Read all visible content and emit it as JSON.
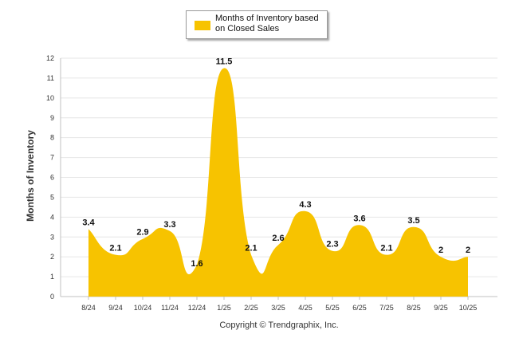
{
  "chart_data": {
    "type": "area",
    "title": "",
    "xlabel": "",
    "ylabel": "Months of Inventory",
    "ylim": [
      0,
      12
    ],
    "yticks": [
      "0",
      "1",
      "2",
      "3",
      "4",
      "5",
      "6",
      "7",
      "8",
      "9",
      "10",
      "11",
      "12"
    ],
    "categories": [
      "8/24",
      "9/24",
      "10/24",
      "11/24",
      "12/24",
      "1/25",
      "2/25",
      "3/25",
      "4/25",
      "5/25",
      "6/25",
      "7/25",
      "8/25",
      "9/25",
      "10/25"
    ],
    "series": [
      {
        "name": "Months of Inventory based on Closed Sales",
        "values": [
          3.4,
          2.1,
          2.9,
          3.3,
          1.6,
          11.5,
          2.1,
          2.6,
          4.3,
          2.3,
          3.6,
          2.1,
          3.5,
          2,
          2
        ],
        "labels": [
          "3.4",
          "2.1",
          "2.9",
          "3.3",
          "1.6",
          "11.5",
          "2.1",
          "2.6",
          "4.3",
          "2.3",
          "3.6",
          "2.1",
          "3.5",
          "2",
          "2"
        ]
      }
    ],
    "legend_position": "top-center",
    "grid": true
  },
  "legend": {
    "label": "Months of Inventory based on Closed Sales"
  },
  "footer": {
    "copyright": "Copyright © Trendgraphix, Inc."
  },
  "colors": {
    "series": "#F7C300",
    "grid": "#e6e6e6",
    "axis": "#c0c0c0"
  }
}
